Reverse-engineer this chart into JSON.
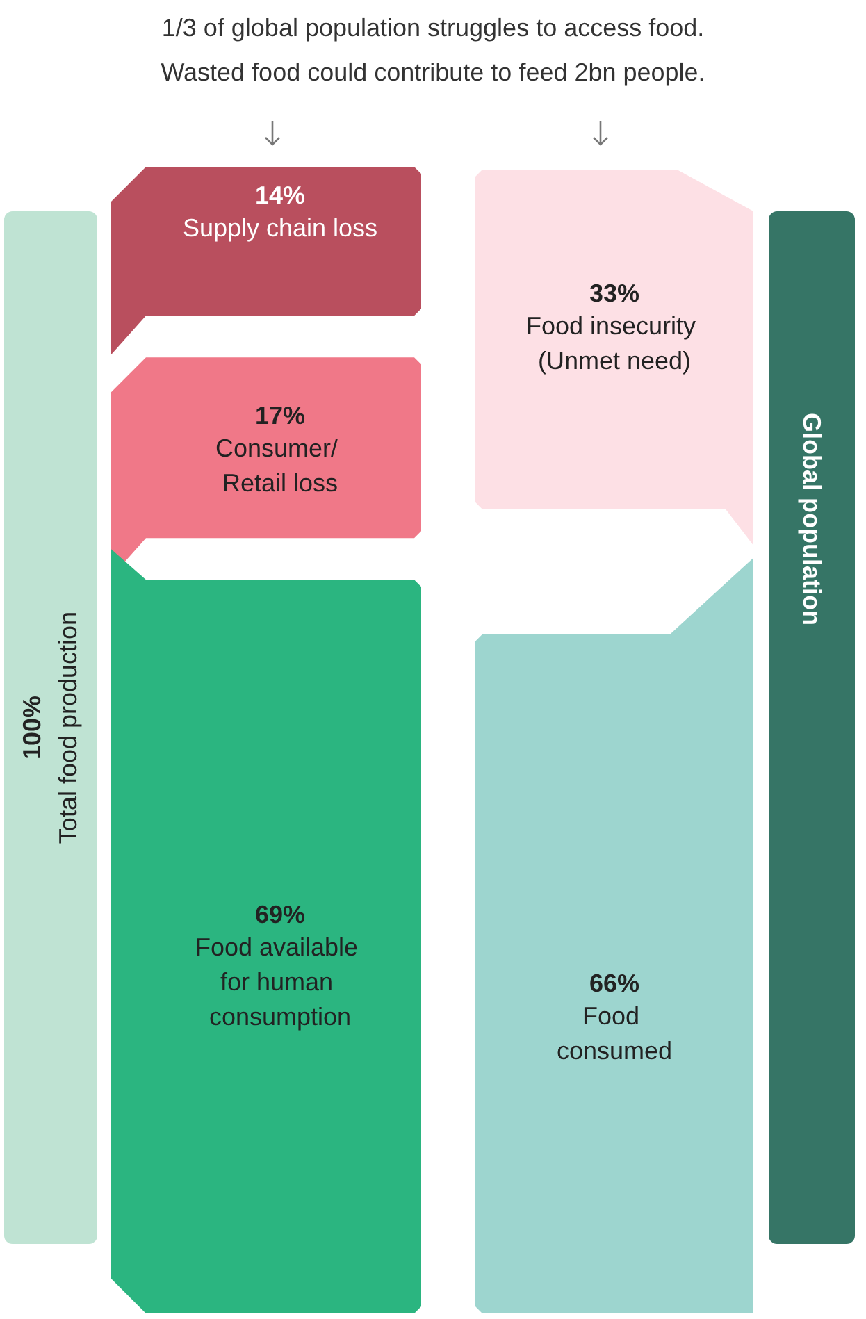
{
  "chart_data": {
    "type": "other",
    "title": "1/3 of global population struggles to access food.",
    "subtitle": "Wasted food could contribute to feed 2bn people.",
    "categories": [
      "Total food production",
      "Supply chain loss",
      "Consumer/ Retail loss",
      "Food available for human consumption",
      "Food insecurity (Unmet need)",
      "Food consumed",
      "Global population"
    ],
    "values": [
      100,
      14,
      17,
      69,
      33,
      66,
      null
    ],
    "value_labels": [
      "100%",
      "14%",
      "17%",
      "69%",
      "33%",
      "66%",
      null
    ],
    "colors": [
      "#bfe3d3",
      "#b94f5e",
      "#f07888",
      "#2bb580",
      "#fde0e5",
      "#9dd5cf",
      "#367566"
    ]
  }
}
